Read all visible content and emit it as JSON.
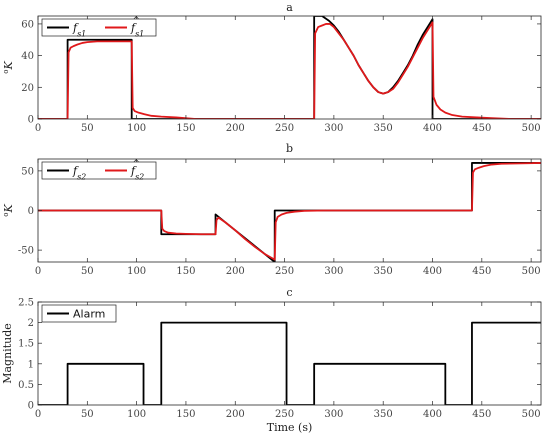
{
  "colors": {
    "truth": "#000000",
    "estimate": "#e0191b",
    "axis": "#262626",
    "grid_tick": "#444444"
  },
  "chart_data": [
    {
      "type": "line",
      "title": "a",
      "ylabel": "oK",
      "ylabel_display": {
        "sup": "o",
        "main": "K"
      },
      "xlim": [
        0,
        510
      ],
      "ylim": [
        0,
        65
      ],
      "xticks": [
        0,
        50,
        100,
        150,
        200,
        250,
        300,
        350,
        400,
        450,
        500
      ],
      "yticks": [
        0,
        20,
        40,
        60
      ],
      "legend": {
        "placement": "top-left"
      },
      "series": [
        {
          "name": "fs1",
          "name_display": {
            "main": "f",
            "sub": "s1",
            "hat": false
          },
          "color": "truth",
          "x": [
            0,
            30,
            30,
            95,
            95,
            280,
            280,
            288,
            295,
            300,
            305,
            310,
            315,
            320,
            325,
            330,
            335,
            340,
            345,
            350,
            355,
            360,
            365,
            370,
            375,
            380,
            385,
            390,
            395,
            400,
            400,
            510
          ],
          "y": [
            0,
            0,
            50,
            50,
            0,
            0,
            65,
            65,
            62,
            59,
            55,
            50,
            45,
            40,
            34,
            29,
            24,
            20,
            17,
            16,
            17,
            20,
            24,
            29,
            34,
            40,
            47,
            53,
            58,
            63,
            0,
            0
          ]
        },
        {
          "name": "f̂s1",
          "name_display": {
            "main": "f",
            "sub": "s1",
            "hat": true
          },
          "color": "estimate",
          "x": [
            0,
            30,
            31,
            33,
            36,
            40,
            45,
            50,
            60,
            70,
            80,
            95,
            96,
            98,
            102,
            108,
            115,
            125,
            140,
            160,
            280,
            281,
            284,
            288,
            292,
            296,
            300,
            305,
            310,
            315,
            320,
            325,
            330,
            335,
            340,
            345,
            350,
            355,
            360,
            365,
            370,
            375,
            380,
            385,
            390,
            395,
            400,
            401,
            404,
            408,
            413,
            420,
            430,
            445,
            460,
            480,
            510
          ],
          "y": [
            0,
            0,
            42,
            45,
            46,
            47,
            48,
            48.5,
            49,
            49,
            49,
            49,
            7,
            5,
            4,
            3,
            2,
            1.5,
            1,
            0,
            0,
            54,
            58,
            59,
            60,
            60,
            58,
            54,
            50,
            45,
            40,
            34,
            29,
            24,
            20,
            17,
            16,
            17,
            19,
            23,
            28,
            33,
            39,
            45,
            51,
            56,
            61,
            14,
            9,
            6,
            4,
            2.5,
            1.5,
            1,
            0.5,
            0,
            0
          ]
        }
      ]
    },
    {
      "type": "line",
      "title": "b",
      "ylabel": "oK",
      "ylabel_display": {
        "sup": "o",
        "main": "K"
      },
      "xlim": [
        0,
        510
      ],
      "ylim": [
        -65,
        65
      ],
      "xticks": [
        0,
        50,
        100,
        150,
        200,
        250,
        300,
        350,
        400,
        450,
        500
      ],
      "yticks": [
        -50,
        0,
        50
      ],
      "legend": {
        "placement": "top-left"
      },
      "series": [
        {
          "name": "fs2",
          "name_display": {
            "main": "f",
            "sub": "s2",
            "hat": false
          },
          "color": "truth",
          "x": [
            0,
            125,
            125,
            180,
            180,
            240,
            240,
            440,
            440,
            510
          ],
          "y": [
            0,
            0,
            -30,
            -30,
            -5,
            -65,
            0,
            0,
            60,
            60
          ]
        },
        {
          "name": "f̂s2",
          "name_display": {
            "main": "f",
            "sub": "s2",
            "hat": true
          },
          "color": "estimate",
          "x": [
            0,
            125,
            126,
            128,
            132,
            140,
            150,
            165,
            180,
            181,
            183,
            190,
            200,
            210,
            220,
            230,
            240,
            241,
            243,
            247,
            252,
            260,
            270,
            290,
            440,
            441,
            443,
            447,
            452,
            460,
            470,
            490,
            510
          ],
          "y": [
            0,
            0,
            -23,
            -26,
            -28,
            -29,
            -29.5,
            -30,
            -30,
            -12,
            -9,
            -15,
            -25,
            -36,
            -46,
            -55,
            -62,
            -15,
            -8,
            -5,
            -3,
            -1.5,
            -0.5,
            0,
            0,
            48,
            52,
            54,
            56,
            58,
            59,
            59.5,
            60
          ]
        }
      ]
    },
    {
      "type": "line",
      "title": "c",
      "xlabel": "Time (s)",
      "ylabel": "Magnitude",
      "xlim": [
        0,
        510
      ],
      "ylim": [
        0,
        2.5
      ],
      "xticks": [
        0,
        50,
        100,
        150,
        200,
        250,
        300,
        350,
        400,
        450,
        500
      ],
      "yticks": [
        0,
        0.5,
        1,
        1.5,
        2,
        2.5
      ],
      "yticklabels": [
        "0",
        "0.5",
        "1",
        "1.5",
        "2",
        "2.5"
      ],
      "legend": {
        "placement": "top-left"
      },
      "series": [
        {
          "name": "Alarm",
          "color": "truth",
          "x": [
            0,
            30,
            30,
            107,
            107,
            125,
            125,
            252,
            252,
            280,
            280,
            413,
            413,
            440,
            440,
            510
          ],
          "y": [
            0,
            0,
            1,
            1,
            0,
            0,
            2,
            2,
            0,
            0,
            1,
            1,
            0,
            0,
            2,
            2
          ]
        }
      ]
    }
  ]
}
